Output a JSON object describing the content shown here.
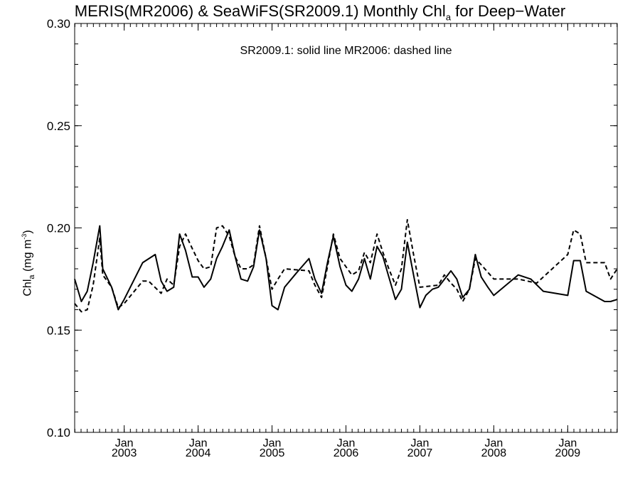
{
  "title": {
    "main": "MERIS(MR2006) & SeaWiFS(SR2009.1) Monthly Chl",
    "sub": "a",
    "suffix": " for Deep−Water"
  },
  "annotation": "SR2009.1: solid line   MR2006: dashed line",
  "ylabel": {
    "main": "Chl",
    "sub": "a",
    "unit_open": " (mg m",
    "sup": "-3",
    "unit_close": ")"
  },
  "chart_data": {
    "type": "line",
    "ylim": [
      0.1,
      0.3
    ],
    "xlim": [
      2002.33,
      2009.67
    ],
    "y_ticks": [
      {
        "value": 0.1,
        "label": "0.10"
      },
      {
        "value": 0.15,
        "label": "0.15"
      },
      {
        "value": 0.2,
        "label": "0.20"
      },
      {
        "value": 0.25,
        "label": "0.25"
      },
      {
        "value": 0.3,
        "label": "0.30"
      }
    ],
    "x_ticks": [
      {
        "value": 2003,
        "month": "Jan",
        "year": "2003"
      },
      {
        "value": 2004,
        "month": "Jan",
        "year": "2004"
      },
      {
        "value": 2005,
        "month": "Jan",
        "year": "2005"
      },
      {
        "value": 2006,
        "month": "Jan",
        "year": "2006"
      },
      {
        "value": 2007,
        "month": "Jan",
        "year": "2007"
      },
      {
        "value": 2008,
        "month": "Jan",
        "year": "2008"
      },
      {
        "value": 2009,
        "month": "Jan",
        "year": "2009"
      }
    ],
    "grid": false,
    "series": [
      {
        "name": "SR2009.1",
        "style": "solid",
        "color": "#000000",
        "points": [
          [
            2002.33,
            0.175
          ],
          [
            2002.42,
            0.164
          ],
          [
            2002.5,
            0.169
          ],
          [
            2002.58,
            0.183
          ],
          [
            2002.67,
            0.201
          ],
          [
            2002.71,
            0.18
          ],
          [
            2002.83,
            0.171
          ],
          [
            2002.92,
            0.16
          ],
          [
            2003.0,
            0.165
          ],
          [
            2003.25,
            0.183
          ],
          [
            2003.42,
            0.187
          ],
          [
            2003.5,
            0.174
          ],
          [
            2003.58,
            0.169
          ],
          [
            2003.67,
            0.171
          ],
          [
            2003.75,
            0.197
          ],
          [
            2003.83,
            0.189
          ],
          [
            2003.92,
            0.176
          ],
          [
            2004.0,
            0.176
          ],
          [
            2004.08,
            0.171
          ],
          [
            2004.17,
            0.175
          ],
          [
            2004.25,
            0.185
          ],
          [
            2004.33,
            0.191
          ],
          [
            2004.42,
            0.199
          ],
          [
            2004.5,
            0.186
          ],
          [
            2004.58,
            0.175
          ],
          [
            2004.67,
            0.174
          ],
          [
            2004.75,
            0.181
          ],
          [
            2004.83,
            0.199
          ],
          [
            2004.92,
            0.185
          ],
          [
            2005.0,
            0.162
          ],
          [
            2005.08,
            0.16
          ],
          [
            2005.17,
            0.171
          ],
          [
            2005.33,
            0.178
          ],
          [
            2005.5,
            0.185
          ],
          [
            2005.58,
            0.175
          ],
          [
            2005.67,
            0.168
          ],
          [
            2005.75,
            0.183
          ],
          [
            2005.83,
            0.196
          ],
          [
            2005.92,
            0.181
          ],
          [
            2006.0,
            0.172
          ],
          [
            2006.08,
            0.169
          ],
          [
            2006.17,
            0.175
          ],
          [
            2006.25,
            0.185
          ],
          [
            2006.33,
            0.175
          ],
          [
            2006.42,
            0.191
          ],
          [
            2006.5,
            0.186
          ],
          [
            2006.58,
            0.176
          ],
          [
            2006.67,
            0.165
          ],
          [
            2006.75,
            0.17
          ],
          [
            2006.83,
            0.193
          ],
          [
            2006.92,
            0.176
          ],
          [
            2007.0,
            0.161
          ],
          [
            2007.08,
            0.167
          ],
          [
            2007.17,
            0.17
          ],
          [
            2007.25,
            0.171
          ],
          [
            2007.42,
            0.179
          ],
          [
            2007.5,
            0.175
          ],
          [
            2007.58,
            0.166
          ],
          [
            2007.67,
            0.17
          ],
          [
            2007.75,
            0.187
          ],
          [
            2007.83,
            0.176
          ],
          [
            2007.92,
            0.171
          ],
          [
            2008.0,
            0.167
          ],
          [
            2008.33,
            0.177
          ],
          [
            2008.5,
            0.175
          ],
          [
            2008.67,
            0.169
          ],
          [
            2009.0,
            0.167
          ],
          [
            2009.08,
            0.184
          ],
          [
            2009.17,
            0.184
          ],
          [
            2009.25,
            0.169
          ],
          [
            2009.5,
            0.164
          ],
          [
            2009.58,
            0.164
          ],
          [
            2009.67,
            0.165
          ]
        ]
      },
      {
        "name": "MR2006",
        "style": "dashed",
        "color": "#000000",
        "points": [
          [
            2002.33,
            0.163
          ],
          [
            2002.42,
            0.159
          ],
          [
            2002.5,
            0.16
          ],
          [
            2002.58,
            0.172
          ],
          [
            2002.67,
            0.195
          ],
          [
            2002.71,
            0.177
          ],
          [
            2002.83,
            0.171
          ],
          [
            2002.92,
            0.161
          ],
          [
            2003.0,
            0.163
          ],
          [
            2003.25,
            0.174
          ],
          [
            2003.33,
            0.174
          ],
          [
            2003.5,
            0.168
          ],
          [
            2003.58,
            0.175
          ],
          [
            2003.67,
            0.172
          ],
          [
            2003.75,
            0.191
          ],
          [
            2003.83,
            0.197
          ],
          [
            2003.92,
            0.19
          ],
          [
            2004.0,
            0.184
          ],
          [
            2004.08,
            0.18
          ],
          [
            2004.17,
            0.181
          ],
          [
            2004.25,
            0.2
          ],
          [
            2004.33,
            0.201
          ],
          [
            2004.42,
            0.196
          ],
          [
            2004.5,
            0.186
          ],
          [
            2004.58,
            0.18
          ],
          [
            2004.67,
            0.18
          ],
          [
            2004.75,
            0.182
          ],
          [
            2004.83,
            0.201
          ],
          [
            2004.92,
            0.185
          ],
          [
            2005.0,
            0.17
          ],
          [
            2005.08,
            0.175
          ],
          [
            2005.17,
            0.18
          ],
          [
            2005.5,
            0.179
          ],
          [
            2005.58,
            0.172
          ],
          [
            2005.67,
            0.166
          ],
          [
            2005.75,
            0.181
          ],
          [
            2005.83,
            0.197
          ],
          [
            2005.92,
            0.185
          ],
          [
            2006.0,
            0.181
          ],
          [
            2006.08,
            0.177
          ],
          [
            2006.17,
            0.179
          ],
          [
            2006.25,
            0.188
          ],
          [
            2006.33,
            0.183
          ],
          [
            2006.42,
            0.197
          ],
          [
            2006.5,
            0.188
          ],
          [
            2006.58,
            0.18
          ],
          [
            2006.67,
            0.172
          ],
          [
            2006.75,
            0.18
          ],
          [
            2006.83,
            0.204
          ],
          [
            2006.92,
            0.186
          ],
          [
            2007.0,
            0.171
          ],
          [
            2007.25,
            0.172
          ],
          [
            2007.33,
            0.177
          ],
          [
            2007.42,
            0.173
          ],
          [
            2007.5,
            0.17
          ],
          [
            2007.58,
            0.164
          ],
          [
            2007.67,
            0.17
          ],
          [
            2007.75,
            0.185
          ],
          [
            2007.83,
            0.182
          ],
          [
            2008.0,
            0.175
          ],
          [
            2008.33,
            0.175
          ],
          [
            2008.58,
            0.173
          ],
          [
            2009.0,
            0.187
          ],
          [
            2009.08,
            0.199
          ],
          [
            2009.17,
            0.197
          ],
          [
            2009.25,
            0.183
          ],
          [
            2009.5,
            0.183
          ],
          [
            2009.58,
            0.175
          ],
          [
            2009.67,
            0.18
          ]
        ]
      }
    ]
  }
}
